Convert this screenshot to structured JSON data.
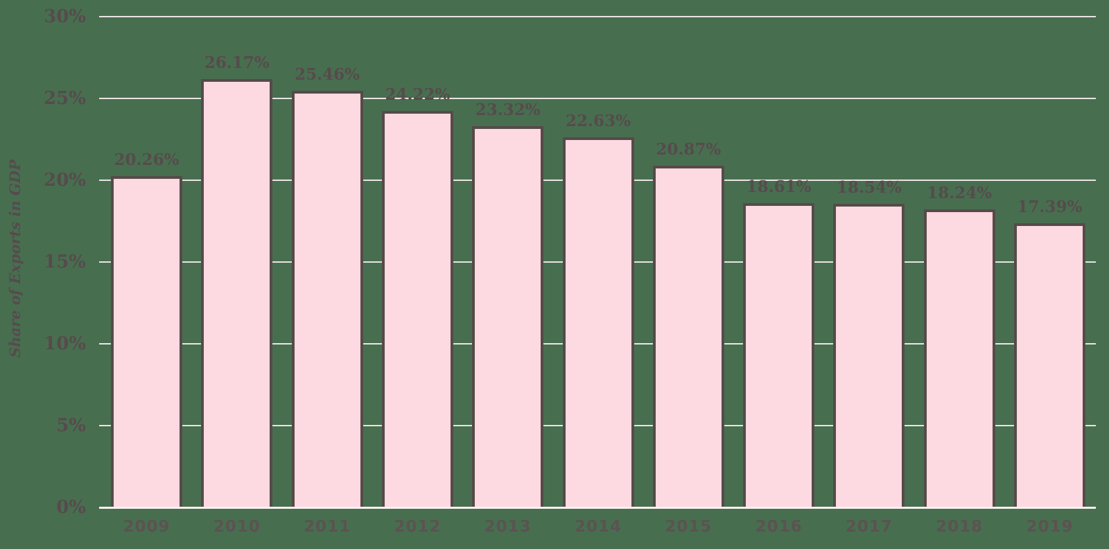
{
  "chart_data": {
    "type": "bar",
    "title": "",
    "xlabel": "",
    "ylabel": "Share of Exports in GDP",
    "categories": [
      "2009",
      "2010",
      "2011",
      "2012",
      "2013",
      "2014",
      "2015",
      "2016",
      "2017",
      "2018",
      "2019"
    ],
    "values": [
      20.26,
      26.17,
      25.46,
      24.22,
      23.32,
      22.63,
      20.87,
      18.61,
      18.54,
      18.24,
      17.39
    ],
    "bar_labels": [
      "20.26%",
      "26.17%",
      "25.46%",
      "24.22%",
      "23.32%",
      "22.63%",
      "20.87%",
      "18.61%",
      "18.54%",
      "18.24%",
      "17.39%"
    ],
    "y_axis": {
      "min": 0,
      "max": 30,
      "tick_step": 5,
      "tick_values": [
        0,
        5,
        10,
        15,
        20,
        25,
        30
      ],
      "tick_labels": [
        "0%",
        "5%",
        "10%",
        "15%",
        "20%",
        "25%",
        "30%"
      ]
    },
    "grid": true,
    "legend": false
  },
  "colors": {
    "background": "#486e50",
    "bar_fill": "#fdd9e1",
    "bar_border": "#554b48",
    "label_text": "#564b4c",
    "year_text": "#5b5351",
    "gridline": "#f6eff0",
    "axis_line": "#f8f1f2"
  }
}
